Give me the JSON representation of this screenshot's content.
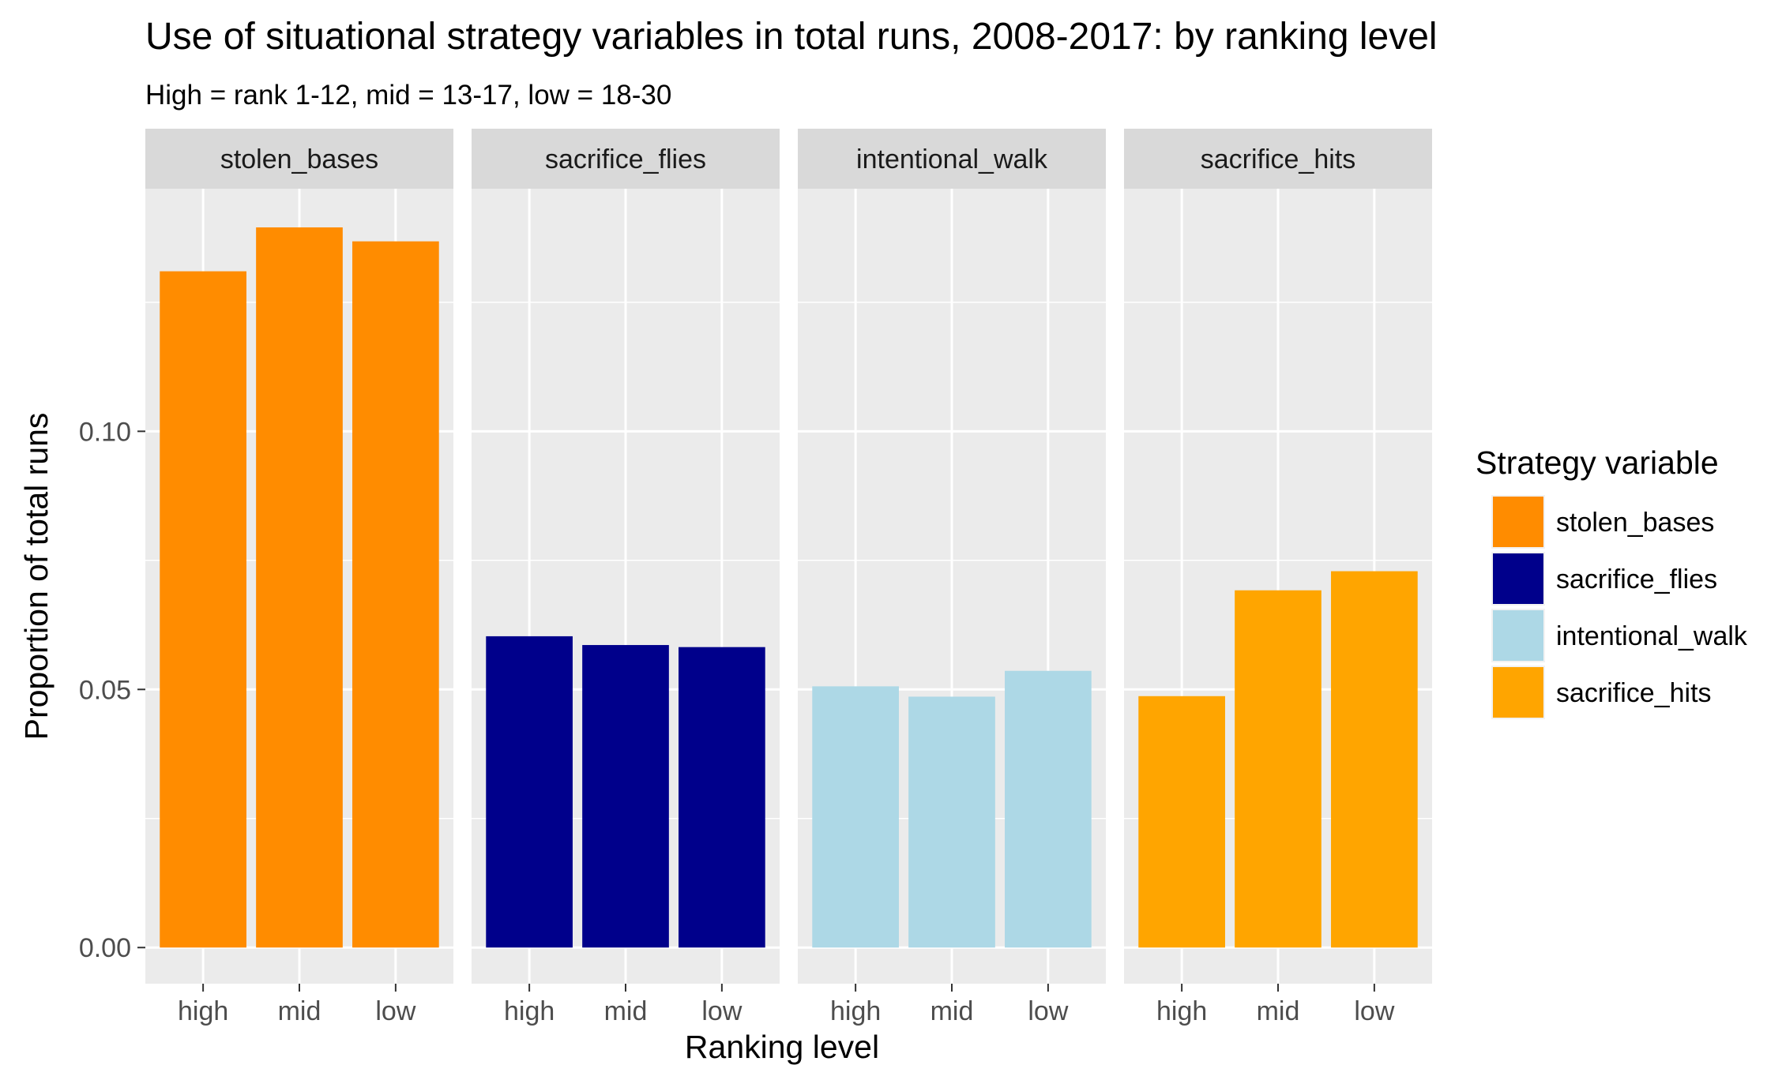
{
  "chart_data": {
    "type": "bar",
    "title": "Use of situational strategy variables in total runs, 2008-2017: by ranking level",
    "subtitle": "High = rank 1-12, mid = 13-17, low = 18-30",
    "xlabel": "Ranking level",
    "ylabel": "Proportion of total runs",
    "categories": [
      "high",
      "mid",
      "low"
    ],
    "ylim": [
      -0.007,
      0.147
    ],
    "yticks": [
      0.0,
      0.05,
      0.1
    ],
    "ytick_labels": [
      "0.00",
      "0.05",
      "0.10"
    ],
    "grid": true,
    "legend": {
      "title": "Strategy variable",
      "position": "right",
      "items": [
        {
          "label": "stolen_bases",
          "color": "#FF8C00"
        },
        {
          "label": "sacrifice_flies",
          "color": "#00008B"
        },
        {
          "label": "intentional_walk",
          "color": "#ADD8E6"
        },
        {
          "label": "sacrifice_hits",
          "color": "#FFA500"
        }
      ]
    },
    "series": [
      {
        "name": "stolen_bases",
        "color": "#FF8C00",
        "values": [
          0.131,
          0.1395,
          0.1368
        ]
      },
      {
        "name": "sacrifice_flies",
        "color": "#00008B",
        "values": [
          0.0603,
          0.0586,
          0.0582
        ]
      },
      {
        "name": "intentional_walk",
        "color": "#ADD8E6",
        "values": [
          0.0506,
          0.0486,
          0.0536
        ]
      },
      {
        "name": "sacrifice_hits",
        "color": "#FFA500",
        "values": [
          0.0487,
          0.0692,
          0.0729
        ]
      }
    ]
  }
}
